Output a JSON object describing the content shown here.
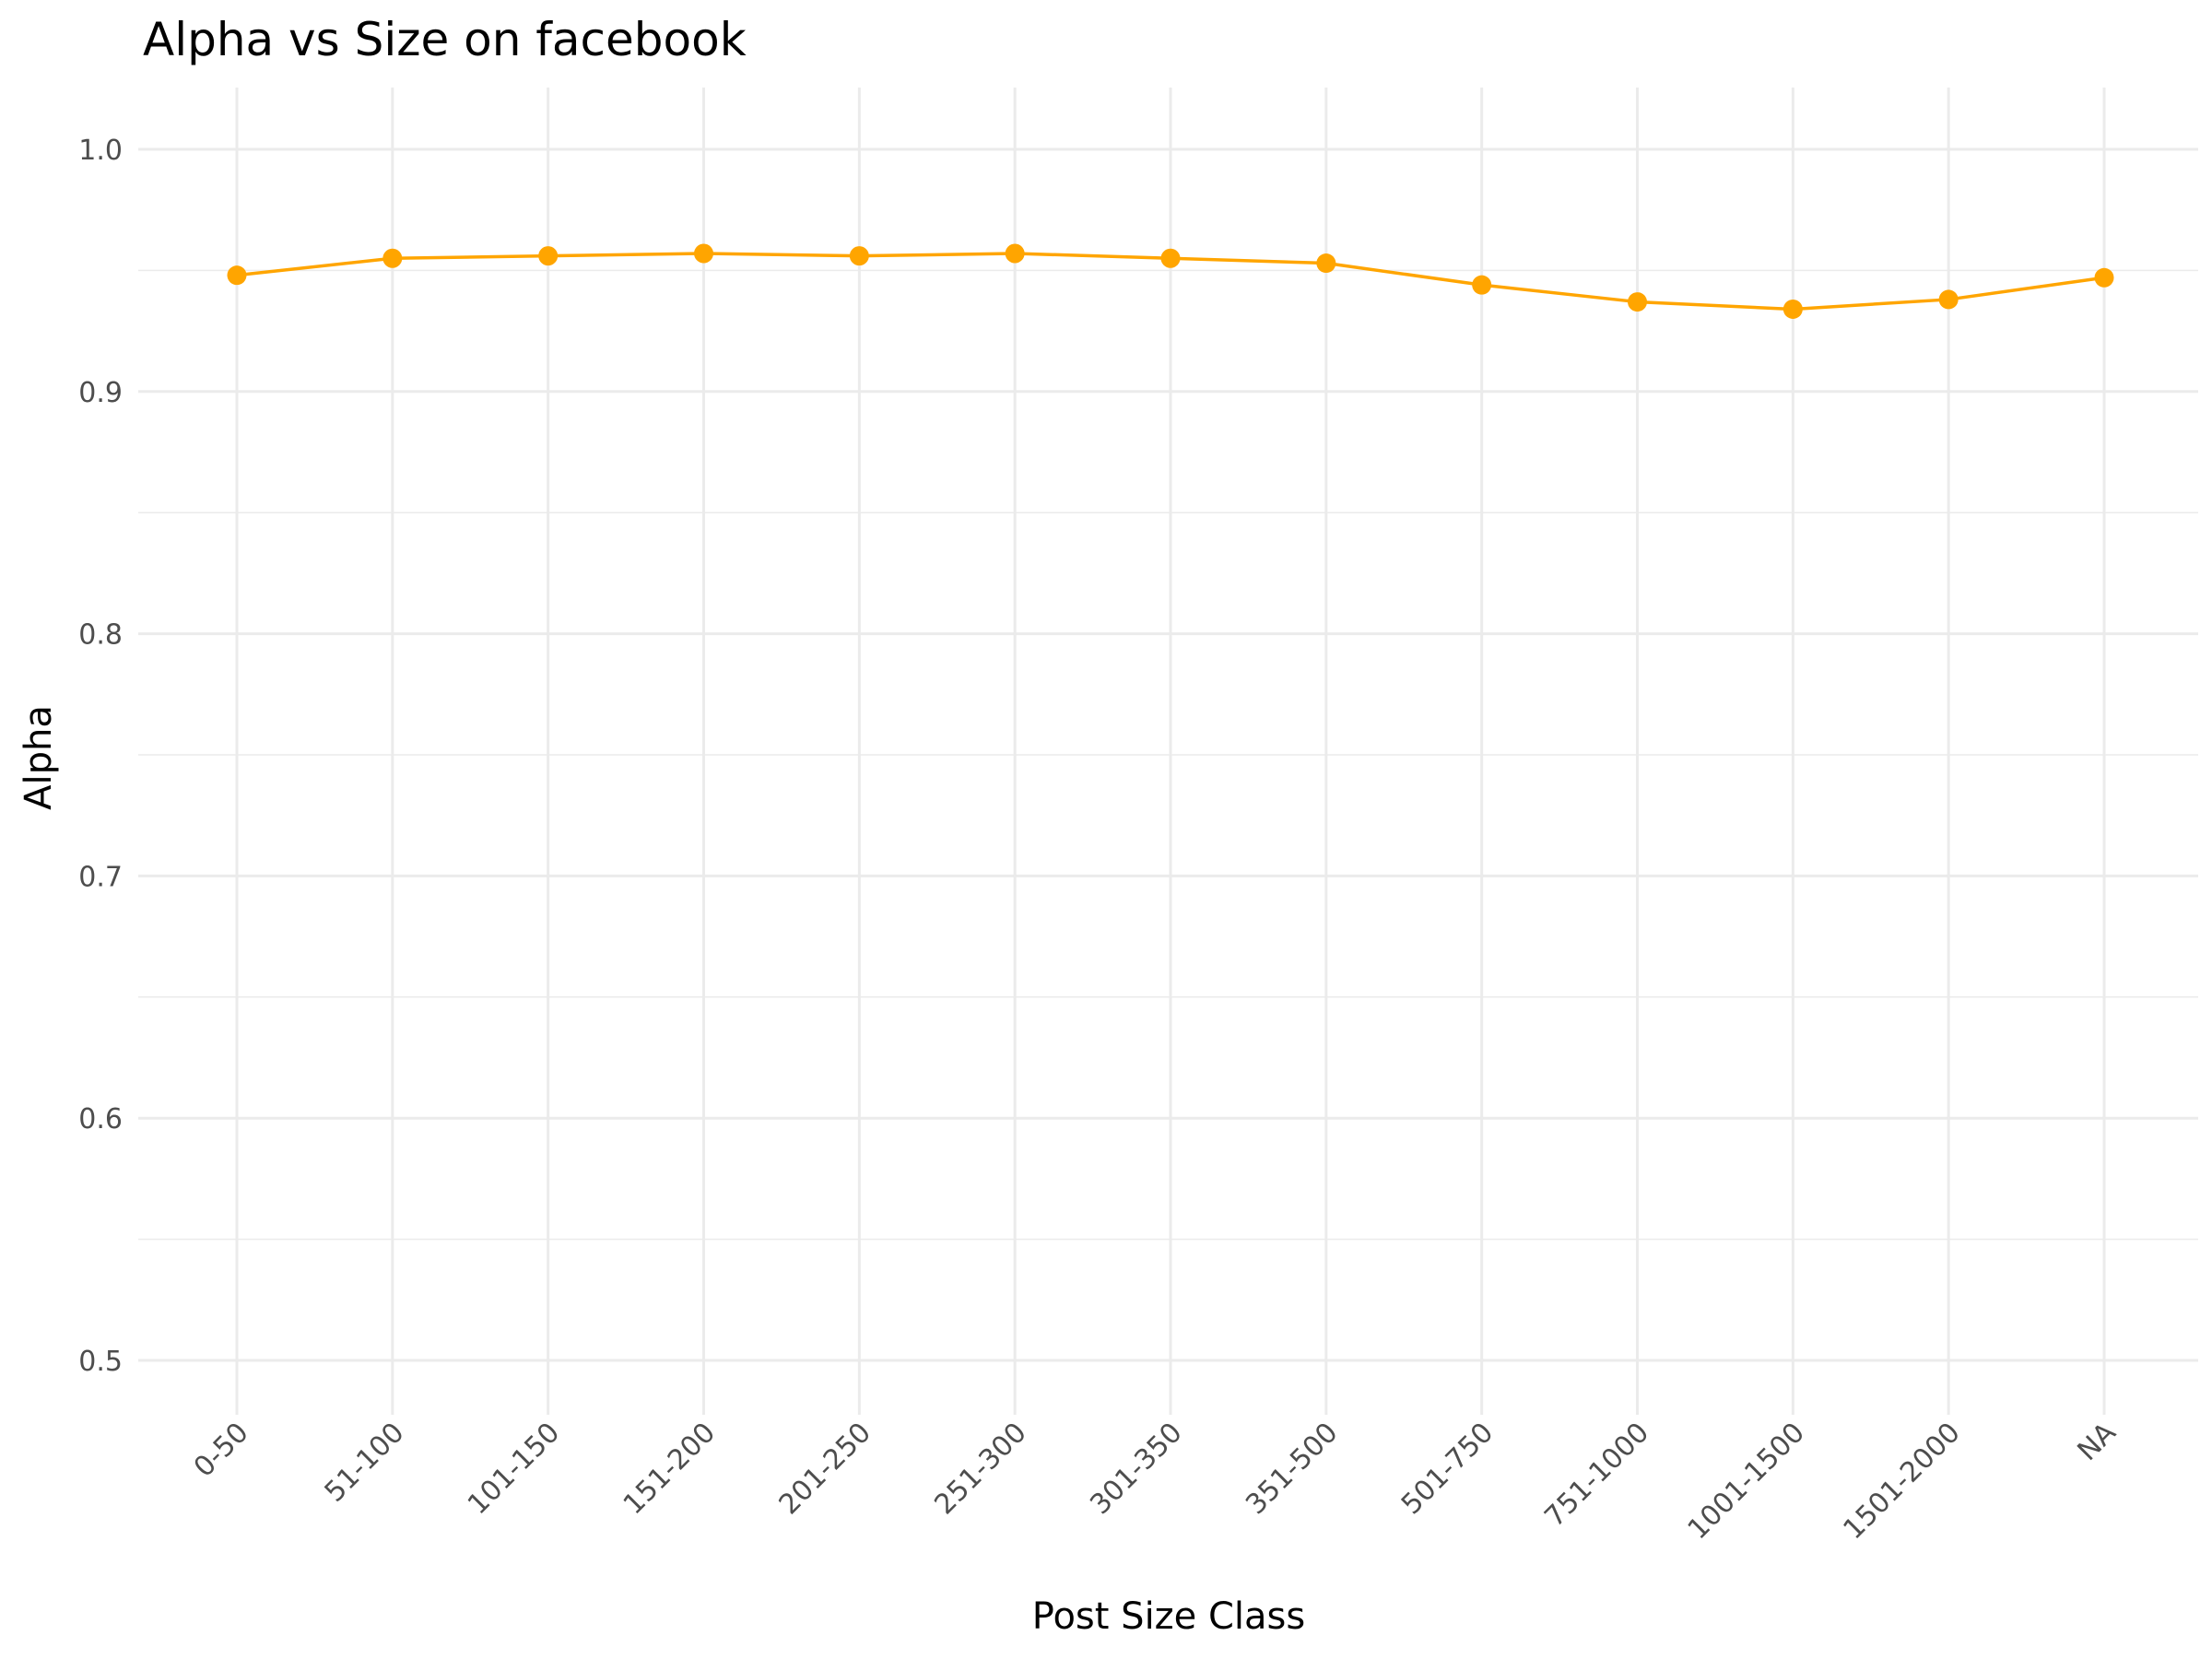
{
  "chart_data": {
    "type": "line",
    "title": "Alpha vs Size on facebook",
    "xlabel": "Post Size Class",
    "ylabel": "Alpha",
    "categories": [
      "0-50",
      "51-100",
      "101-150",
      "151-200",
      "201-250",
      "251-300",
      "301-350",
      "351-500",
      "501-750",
      "751-1000",
      "1001-1500",
      "1501-2000",
      "NA"
    ],
    "series": [
      {
        "values": [
          0.948,
          0.955,
          0.956,
          0.957,
          0.956,
          0.957,
          0.955,
          0.953,
          0.944,
          0.937,
          0.934,
          0.938,
          0.947
        ],
        "color": "#FFA500"
      }
    ],
    "ylim": [
      0.5,
      1.0
    ],
    "yticks": [
      "0.5",
      "0.6",
      "0.7",
      "0.8",
      "0.9",
      "1.0"
    ],
    "grid": true,
    "legend": "none"
  }
}
